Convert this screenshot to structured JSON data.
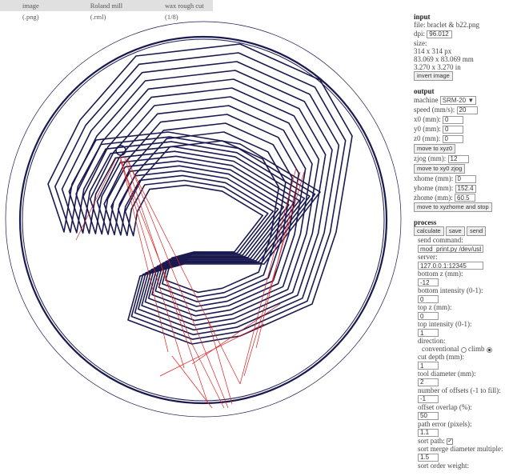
{
  "tabs": [
    "image (.png)",
    "Roland mill (.rml)",
    "wax rough cut (1/8)"
  ],
  "input": {
    "title": "input",
    "file": "file: braclet & b22.png",
    "dpi_label": "dpi:",
    "dpi": "96.012",
    "size_label": "size:",
    "size_px": "314 x 314 px",
    "size_mm": "83.069 x 83.069 mm",
    "size_in": "3.270 x 3.270 in",
    "invert": "invert image"
  },
  "output": {
    "title": "output",
    "machine_label": "machine",
    "machine": "SRM-20",
    "speed_label": "speed (mm/s):",
    "speed": "20",
    "x0_label": "x0 (mm):",
    "x0": "0",
    "y0_label": "y0 (mm):",
    "y0": "0",
    "z0_label": "z0 (mm):",
    "z0": "0",
    "move_xyz0": "move to xyz0",
    "zjog_label": "zjog (mm):",
    "zjog": "12",
    "move_xy0": "move to xy0 zjog",
    "xhome_label": "xhome (mm):",
    "xhome": "0",
    "yhome_label": "yhome (mm):",
    "yhome": "152.4",
    "zhome_label": "zhome (mm):",
    "zhome": "60.5",
    "move_home": "move to xyzhome and stop"
  },
  "process": {
    "title": "process",
    "calculate": "calculate",
    "save": "save",
    "send": "send",
    "send_label": "send command:",
    "send_cmd": "mod_print.py /dev/usb/lp0",
    "server_label": "server:",
    "server": "127.0.0.1:12345",
    "bottom_z_label": "bottom z (mm):",
    "bottom_z": "-12",
    "bottom_int_label": "bottom intensity (0-1):",
    "bottom_int": "0",
    "top_z_label": "top z (mm):",
    "top_z": "0",
    "top_int_label": "top intensity (0-1):",
    "top_int": "1",
    "direction_label": "direction:",
    "conventional": "conventional",
    "climb": "climb",
    "direction": "climb",
    "cut_depth_label": "cut depth (mm):",
    "cut_depth": "1",
    "tool_dia_label": "tool diameter (mm):",
    "tool_dia": "2",
    "offsets_label": "number of offsets (-1 to fill):",
    "offsets": "-1",
    "overlap_label": "offset overlap (%):",
    "overlap": "50",
    "path_error_label": "path error (pixels):",
    "path_error": "1.1",
    "sort_path_label": "sort path:",
    "sort_path": true,
    "merge_label": "sort merge diameter multiple:",
    "merge": "1.5",
    "order_label": "sort order weight:"
  },
  "colors": {
    "toolpath": "#1a1a50",
    "moves": "#e02020",
    "tabbar": "#e0e0e0"
  }
}
